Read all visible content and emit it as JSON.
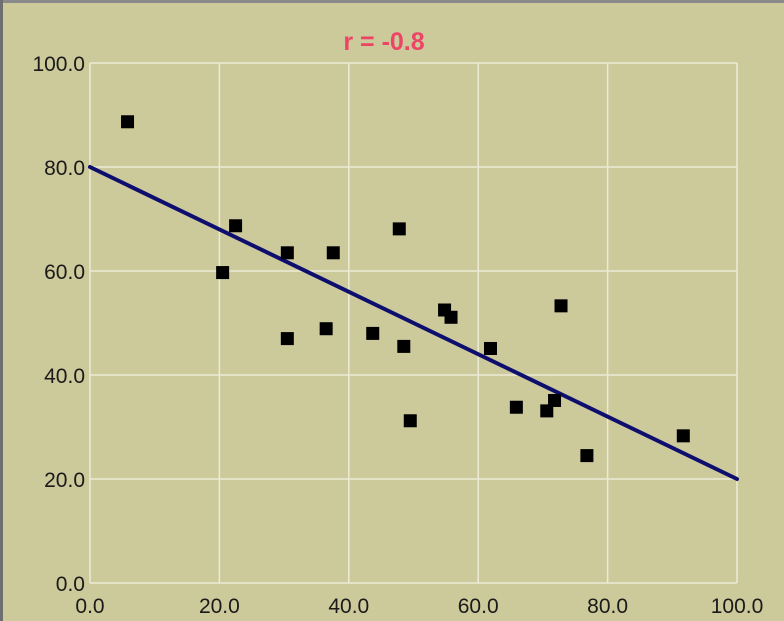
{
  "colors": {
    "background": "#ccc99b",
    "grid": "#ecebd6",
    "points": "#000000",
    "line": "#0e0e6e",
    "title": "#ee4466",
    "axis_text": "#1a1a1a"
  },
  "chart_data": {
    "type": "scatter",
    "title": "r = -0.8",
    "xlabel": "",
    "ylabel": "",
    "xlim": [
      0,
      100
    ],
    "ylim": [
      0,
      100
    ],
    "x_ticks": [
      "0.0",
      "20.0",
      "40.0",
      "60.0",
      "80.0",
      "100.0"
    ],
    "y_ticks": [
      "0.0",
      "20.0",
      "40.0",
      "60.0",
      "80.0",
      "100.0"
    ],
    "grid": true,
    "points": [
      {
        "x": 5.8,
        "y": 88.7
      },
      {
        "x": 20.5,
        "y": 59.7
      },
      {
        "x": 22.5,
        "y": 68.7
      },
      {
        "x": 30.5,
        "y": 63.5
      },
      {
        "x": 30.5,
        "y": 47.0
      },
      {
        "x": 36.5,
        "y": 48.9
      },
      {
        "x": 37.6,
        "y": 63.5
      },
      {
        "x": 43.7,
        "y": 48.0
      },
      {
        "x": 47.8,
        "y": 68.1
      },
      {
        "x": 48.5,
        "y": 45.5
      },
      {
        "x": 49.5,
        "y": 31.2
      },
      {
        "x": 54.8,
        "y": 52.5
      },
      {
        "x": 55.8,
        "y": 51.1
      },
      {
        "x": 61.9,
        "y": 45.1
      },
      {
        "x": 65.9,
        "y": 33.8
      },
      {
        "x": 70.6,
        "y": 33.1
      },
      {
        "x": 71.8,
        "y": 35.1
      },
      {
        "x": 72.8,
        "y": 53.3
      },
      {
        "x": 76.8,
        "y": 24.5
      },
      {
        "x": 91.7,
        "y": 28.3
      }
    ],
    "fit_line": {
      "x": [
        0,
        100
      ],
      "y": [
        80,
        20
      ]
    }
  }
}
